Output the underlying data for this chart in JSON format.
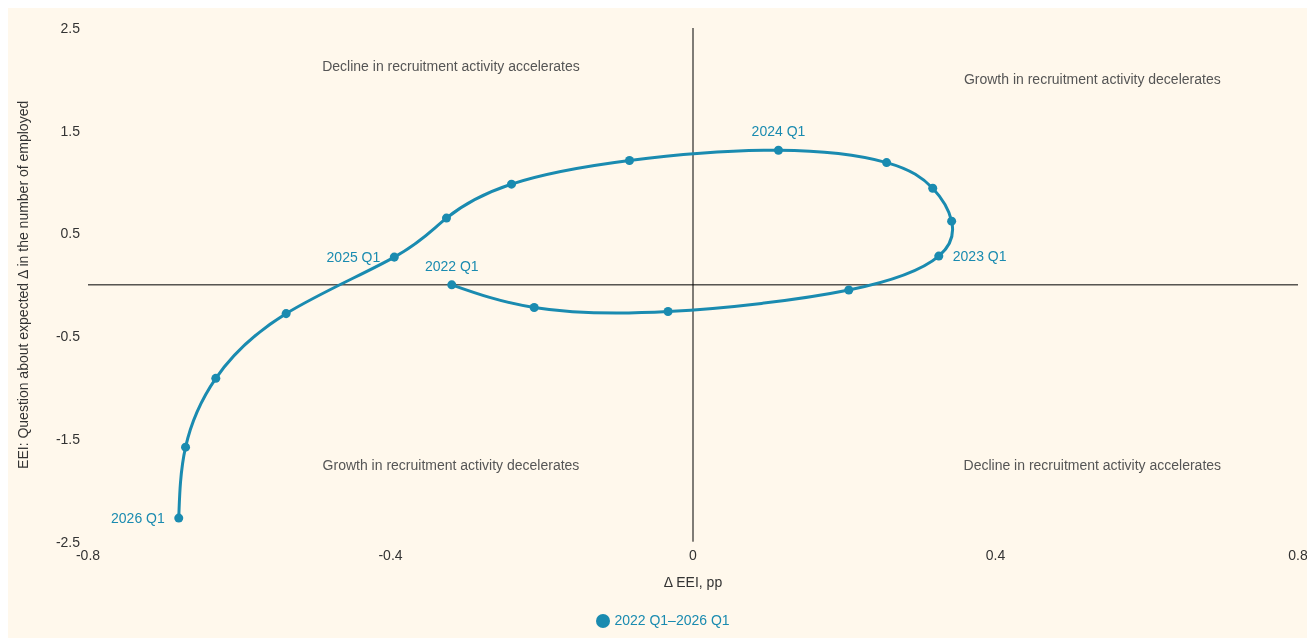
{
  "chart_data": {
    "type": "line",
    "xlabel": "Δ EEI, pp",
    "ylabel": "EEI: Question about expected Δ in the number of employed",
    "x": [
      -0.319,
      -0.21,
      -0.033,
      0.206,
      0.325,
      0.342,
      0.317,
      0.256,
      0.113,
      -0.084,
      -0.24,
      -0.326,
      -0.395,
      -0.538,
      -0.631,
      -0.671,
      -0.68
    ],
    "series": [
      {
        "name": "2022 Q1–2026 Q1",
        "color": "#1a8bb0",
        "values": [
          0.0,
          -0.22,
          -0.26,
          -0.05,
          0.28,
          0.62,
          0.94,
          1.19,
          1.31,
          1.21,
          0.98,
          0.65,
          0.27,
          -0.28,
          -0.91,
          -1.58,
          -2.27
        ]
      }
    ],
    "xlim": [
      -0.8,
      0.8
    ],
    "xticks": [
      -0.8,
      -0.4,
      0,
      0.4,
      0.8
    ],
    "ylim": [
      -2.5,
      2.5
    ],
    "yticks": [
      2.5,
      1.5,
      0.5,
      -0.5,
      -1.5,
      -2.5
    ],
    "marker": "circle",
    "legend": "bottom",
    "annotations": [
      "Decline in recruitment activity accelerates",
      "Growth in recruitment activity decelerates",
      "Growth in recruitment activity decelerates",
      "Decline in recruitment activity accelerates",
      {
        "text": "2022 Q1",
        "x": -0.319,
        "y": 0.0
      },
      {
        "text": "2023 Q1",
        "x": 0.325,
        "y": 0.28
      },
      {
        "text": "2024 Q1",
        "x": 0.113,
        "y": 1.31
      },
      {
        "text": "2025 Q1",
        "x": -0.395,
        "y": 0.27
      },
      {
        "text": "2026 Q1",
        "x": -0.68,
        "y": -2.27
      }
    ]
  }
}
